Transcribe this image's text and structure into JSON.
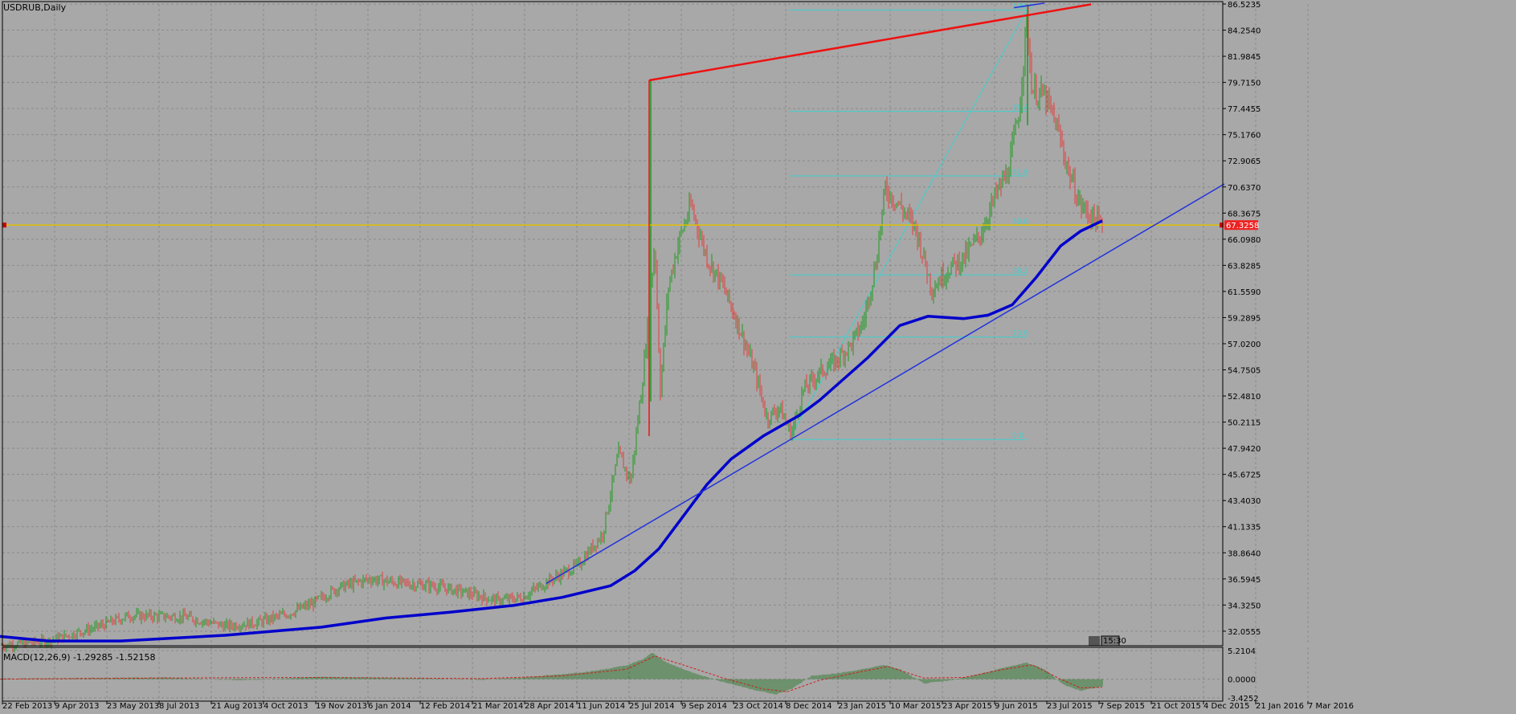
{
  "chart_data": {
    "type": "candlestick",
    "title": "USDRUB,Daily",
    "symbol": "USDRUB",
    "timeframe": "Daily",
    "grid": true,
    "colors": {
      "background": "#a8a8a8",
      "bull": "#1e9a1e",
      "bear": "#e63c3c",
      "ma": "#0000cc",
      "trendline": "#2233dd",
      "channel": "#ee1111",
      "fib": "#3fd0d0",
      "current_price_line": "#e0c000",
      "price_tag": "#ee2222",
      "macd_hist": "#2f7a2f",
      "macd_signal": "#cc2222",
      "grid": "#8a8a8a"
    },
    "current_price": 67.3258,
    "current_price_label": "67.3258",
    "time_label": "15:30",
    "y_axis": {
      "ylim": [
        30.93,
        86.5235
      ],
      "ticks": [
        "86.5235",
        "84.2540",
        "81.9845",
        "79.7150",
        "77.4455",
        "75.1760",
        "72.9065",
        "70.6370",
        "68.3675",
        "66.0980",
        "63.8285",
        "61.5590",
        "59.2895",
        "57.0200",
        "54.7505",
        "52.4810",
        "50.2115",
        "47.9420",
        "45.6725",
        "43.4030",
        "41.1335",
        "38.8640",
        "36.5945",
        "34.3250",
        "32.0555"
      ]
    },
    "x_axis": {
      "ticks": [
        "22 Feb 2013",
        "9 Apr 2013",
        "23 May 2013",
        "8 Jul 2013",
        "21 Aug 2013",
        "4 Oct 2013",
        "19 Nov 2013",
        "6 Jan 2014",
        "12 Feb 2014",
        "21 Mar 2014",
        "28 Apr 2014",
        "11 Jun 2014",
        "25 Jul 2014",
        "9 Sep 2014",
        "23 Oct 2014",
        "8 Dec 2014",
        "23 Jan 2015",
        "10 Mar 2015",
        "23 Apr 2015",
        "9 Jun 2015",
        "23 Jul 2015",
        "7 Sep 2015",
        "21 Oct 2015",
        "4 Dec 2015",
        "21 Jan 2016",
        "7 Mar 2016"
      ]
    },
    "price_path": [
      [
        0,
        30.8
      ],
      [
        60,
        31.2
      ],
      [
        120,
        32.4
      ],
      [
        160,
        33.4
      ],
      [
        230,
        33.3
      ],
      [
        280,
        32.5
      ],
      [
        320,
        32.8
      ],
      [
        360,
        33.6
      ],
      [
        390,
        34.5
      ],
      [
        420,
        35.8
      ],
      [
        460,
        36.6
      ],
      [
        500,
        36.2
      ],
      [
        540,
        36.0
      ],
      [
        580,
        35.4
      ],
      [
        620,
        34.7
      ],
      [
        650,
        35.0
      ],
      [
        680,
        36.3
      ],
      [
        720,
        37.8
      ],
      [
        750,
        40.5
      ],
      [
        770,
        47.5
      ],
      [
        785,
        45.0
      ],
      [
        800,
        54.0
      ],
      [
        808,
        60.0
      ],
      [
        815,
        66.0
      ],
      [
        822,
        53.0
      ],
      [
        832,
        62.0
      ],
      [
        845,
        66.0
      ],
      [
        860,
        69.0
      ],
      [
        880,
        64.5
      ],
      [
        900,
        62.0
      ],
      [
        920,
        58.5
      ],
      [
        940,
        54.5
      ],
      [
        955,
        50.5
      ],
      [
        970,
        51.5
      ],
      [
        985,
        49.2
      ],
      [
        1000,
        53.0
      ],
      [
        1020,
        54.5
      ],
      [
        1040,
        55.5
      ],
      [
        1060,
        57.0
      ],
      [
        1075,
        59.0
      ],
      [
        1090,
        64.0
      ],
      [
        1102,
        70.5
      ],
      [
        1120,
        69.0
      ],
      [
        1140,
        67.0
      ],
      [
        1160,
        61.8
      ],
      [
        1180,
        63.5
      ],
      [
        1200,
        64.5
      ],
      [
        1220,
        66.5
      ],
      [
        1240,
        70.0
      ],
      [
        1255,
        72.0
      ],
      [
        1268,
        77.0
      ],
      [
        1278,
        85.0
      ],
      [
        1285,
        79.0
      ],
      [
        1300,
        78.5
      ],
      [
        1315,
        76.0
      ],
      [
        1330,
        72.0
      ],
      [
        1345,
        69.0
      ],
      [
        1360,
        68.0
      ],
      [
        1372,
        67.3
      ]
    ],
    "moving_average": [
      [
        0,
        31.6
      ],
      [
        60,
        31.2
      ],
      [
        150,
        31.2
      ],
      [
        280,
        31.7
      ],
      [
        400,
        32.4
      ],
      [
        480,
        33.2
      ],
      [
        560,
        33.7
      ],
      [
        640,
        34.3
      ],
      [
        700,
        35.0
      ],
      [
        760,
        36.0
      ],
      [
        790,
        37.3
      ],
      [
        820,
        39.2
      ],
      [
        850,
        42.0
      ],
      [
        880,
        44.8
      ],
      [
        910,
        47.0
      ],
      [
        950,
        49.0
      ],
      [
        995,
        50.8
      ],
      [
        1020,
        52.1
      ],
      [
        1080,
        55.8
      ],
      [
        1120,
        58.6
      ],
      [
        1155,
        59.4
      ],
      [
        1200,
        59.2
      ],
      [
        1230,
        59.5
      ],
      [
        1260,
        60.4
      ],
      [
        1290,
        62.8
      ],
      [
        1320,
        65.5
      ],
      [
        1345,
        66.8
      ],
      [
        1372,
        67.7
      ]
    ],
    "trendline": {
      "from": [
        680,
        36.2
      ],
      "to": [
        1524,
        70.9
      ]
    },
    "red_channel": {
      "vertical": [
        [
          808,
          49.0
        ],
        [
          808,
          79.9
        ]
      ],
      "top": [
        [
          808,
          79.9
        ],
        [
          1358,
          86.5
        ]
      ]
    },
    "fib_lines": [
      {
        "label": "100.0",
        "price": 86.0
      },
      {
        "label": "76.4",
        "price": 77.2
      },
      {
        "label": "61.8",
        "price": 71.6
      },
      {
        "label": "50.0",
        "price": 67.3
      },
      {
        "label": "38.2",
        "price": 63.0
      },
      {
        "label": "23.6",
        "price": 57.6
      },
      {
        "label": "0.0",
        "price": 48.7
      }
    ],
    "fib_x_range": [
      982,
      1278
    ],
    "macd": {
      "label": "MACD(12,26,9) -1.29285 -1.52158",
      "ticks": [
        "5.2104",
        "0.0000",
        "-3.4252"
      ],
      "ylim": [
        -3.4252,
        5.2104
      ],
      "hist_path": [
        [
          0,
          0.1
        ],
        [
          100,
          0.2
        ],
        [
          200,
          0.3
        ],
        [
          300,
          -0.2
        ],
        [
          400,
          0.4
        ],
        [
          500,
          0.2
        ],
        [
          600,
          -0.1
        ],
        [
          650,
          0.3
        ],
        [
          700,
          0.9
        ],
        [
          740,
          1.5
        ],
        [
          780,
          2.5
        ],
        [
          800,
          3.6
        ],
        [
          812,
          4.8
        ],
        [
          830,
          3.0
        ],
        [
          860,
          1.3
        ],
        [
          900,
          -0.5
        ],
        [
          940,
          -2.0
        ],
        [
          965,
          -2.8
        ],
        [
          985,
          -1.8
        ],
        [
          1010,
          0.6
        ],
        [
          1040,
          1.0
        ],
        [
          1070,
          1.7
        ],
        [
          1100,
          2.6
        ],
        [
          1120,
          1.8
        ],
        [
          1150,
          -0.8
        ],
        [
          1180,
          -0.3
        ],
        [
          1210,
          0.6
        ],
        [
          1250,
          2.1
        ],
        [
          1278,
          3.0
        ],
        [
          1300,
          1.8
        ],
        [
          1325,
          -1.1
        ],
        [
          1345,
          -2.1
        ],
        [
          1372,
          -1.3
        ]
      ],
      "signal_path": [
        [
          0,
          0.0
        ],
        [
          200,
          0.2
        ],
        [
          400,
          0.3
        ],
        [
          600,
          0.1
        ],
        [
          700,
          0.6
        ],
        [
          780,
          1.8
        ],
        [
          815,
          4.2
        ],
        [
          850,
          2.6
        ],
        [
          900,
          0.2
        ],
        [
          950,
          -1.8
        ],
        [
          980,
          -2.3
        ],
        [
          1020,
          -0.2
        ],
        [
          1070,
          1.3
        ],
        [
          1105,
          2.3
        ],
        [
          1150,
          0.2
        ],
        [
          1200,
          0.3
        ],
        [
          1250,
          1.8
        ],
        [
          1285,
          2.6
        ],
        [
          1320,
          0.0
        ],
        [
          1345,
          -1.6
        ],
        [
          1372,
          -1.5
        ]
      ]
    }
  }
}
